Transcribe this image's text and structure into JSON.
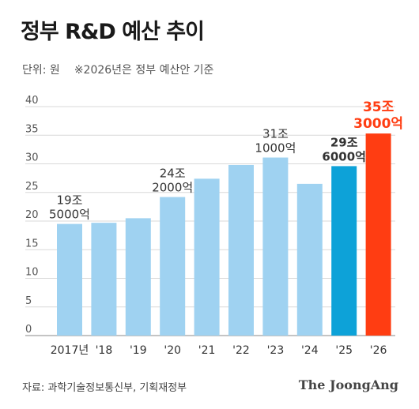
{
  "header": {
    "title": "정부 R&D 예산 추이",
    "unit": "단위: 원",
    "note": "※2026년은 정부 예산안 기준"
  },
  "footer": {
    "source": "자료: 과학기술정보통신부, 기획재정부",
    "brand": "The JoongAng"
  },
  "colors": {
    "bar_default": "#9fd2f1",
    "bar_2025": "#0da2d8",
    "bar_2026": "#ff3d12",
    "label_dark": "#333333",
    "label_highlight_2026": "#ff3d12",
    "grid": "#d9d9d9",
    "axis_text": "#555555"
  },
  "chart_data": {
    "type": "bar",
    "categories": [
      "2017년",
      "'18",
      "'19",
      "'20",
      "'21",
      "'22",
      "'23",
      "'24",
      "'25",
      "'26"
    ],
    "values": [
      19.5,
      19.7,
      20.5,
      24.2,
      27.4,
      29.8,
      31.1,
      26.5,
      29.6,
      35.3
    ],
    "ylim": [
      0,
      40
    ],
    "yticks": [
      0,
      5,
      10,
      15,
      20,
      25,
      30,
      35,
      40
    ],
    "grid": true,
    "data_labels": [
      {
        "category_index": 0,
        "line1": "19조",
        "line2": "5000억",
        "style": "default"
      },
      {
        "category_index": 3,
        "line1": "24조",
        "line2": "2000억",
        "style": "default"
      },
      {
        "category_index": 6,
        "line1": "31조",
        "line2": "1000억",
        "style": "default"
      },
      {
        "category_index": 8,
        "line1": "29조",
        "line2": "6000억",
        "style": "dark"
      },
      {
        "category_index": 9,
        "line1": "35조",
        "line2": "3000억",
        "style": "highlight"
      }
    ],
    "highlight": {
      "8": "bar_2025",
      "9": "bar_2026"
    }
  }
}
